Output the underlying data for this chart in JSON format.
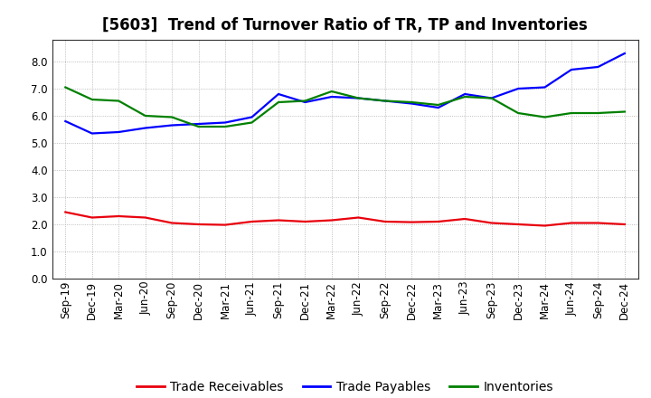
{
  "title": "[5603]  Trend of Turnover Ratio of TR, TP and Inventories",
  "x_labels": [
    "Sep-19",
    "Dec-19",
    "Mar-20",
    "Jun-20",
    "Sep-20",
    "Dec-20",
    "Mar-21",
    "Jun-21",
    "Sep-21",
    "Dec-21",
    "Mar-22",
    "Jun-22",
    "Sep-22",
    "Dec-22",
    "Mar-23",
    "Jun-23",
    "Sep-23",
    "Dec-23",
    "Mar-24",
    "Jun-24",
    "Sep-24",
    "Dec-24"
  ],
  "trade_receivables": [
    2.45,
    2.25,
    2.3,
    2.25,
    2.05,
    2.0,
    1.98,
    2.1,
    2.15,
    2.1,
    2.15,
    2.25,
    2.1,
    2.08,
    2.1,
    2.2,
    2.05,
    2.0,
    1.95,
    2.05,
    2.05,
    2.0
  ],
  "trade_payables": [
    5.8,
    5.35,
    5.4,
    5.55,
    5.65,
    5.7,
    5.75,
    5.95,
    6.8,
    6.5,
    6.7,
    6.65,
    6.55,
    6.45,
    6.3,
    6.8,
    6.65,
    7.0,
    7.05,
    7.7,
    7.8,
    8.3
  ],
  "inventories": [
    7.05,
    6.6,
    6.55,
    6.0,
    5.95,
    5.6,
    5.6,
    5.75,
    6.5,
    6.55,
    6.9,
    6.65,
    6.55,
    6.5,
    6.4,
    6.7,
    6.65,
    6.1,
    5.95,
    6.1,
    6.1,
    6.15
  ],
  "ylim": [
    0.0,
    8.8
  ],
  "yticks": [
    0.0,
    1.0,
    2.0,
    3.0,
    4.0,
    5.0,
    6.0,
    7.0,
    8.0
  ],
  "line_colors": {
    "trade_receivables": "#e8000d",
    "trade_payables": "#0000ff",
    "inventories": "#008000"
  },
  "legend_labels": [
    "Trade Receivables",
    "Trade Payables",
    "Inventories"
  ],
  "background_color": "#ffffff",
  "grid_color": "#aaaaaa",
  "title_fontsize": 12,
  "axis_fontsize": 8.5,
  "legend_fontsize": 10
}
